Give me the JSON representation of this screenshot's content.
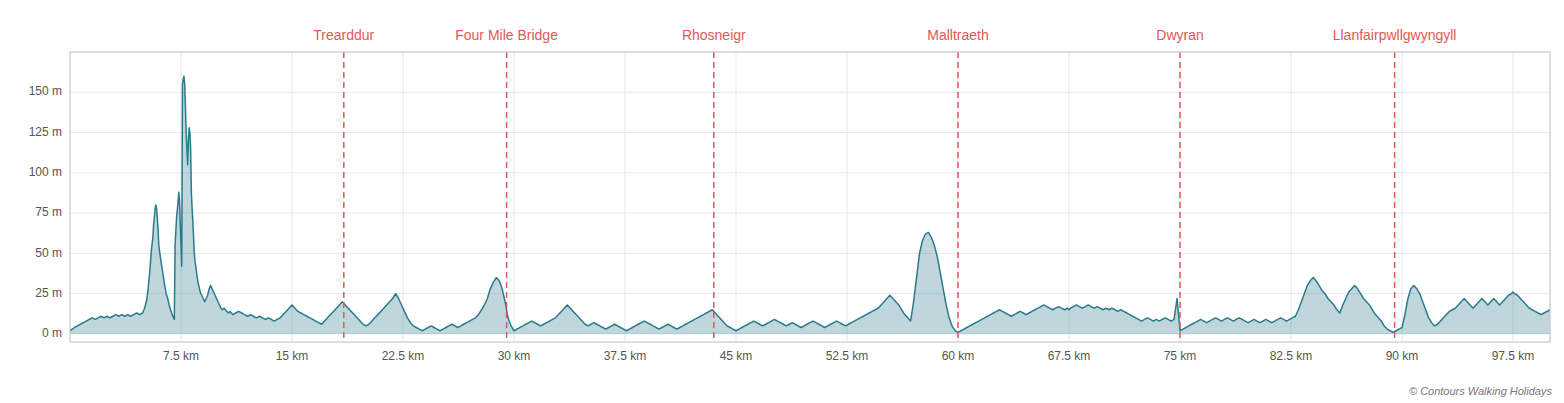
{
  "chart_data": {
    "type": "area",
    "color": "#2a7a8c",
    "grid": true,
    "xlim": [
      0,
      100
    ],
    "ylim": [
      -5,
      175
    ],
    "xticks": [
      {
        "value": 7.5,
        "label": "7.5 km"
      },
      {
        "value": 15,
        "label": "15 km"
      },
      {
        "value": 22.5,
        "label": "22.5 km"
      },
      {
        "value": 30,
        "label": "30 km"
      },
      {
        "value": 37.5,
        "label": "37.5 km"
      },
      {
        "value": 45,
        "label": "45 km"
      },
      {
        "value": 52.5,
        "label": "52.5 km"
      },
      {
        "value": 60,
        "label": "60 km"
      },
      {
        "value": 67.5,
        "label": "67.5 km"
      },
      {
        "value": 75,
        "label": "75 km"
      },
      {
        "value": 82.5,
        "label": "82.5 km"
      },
      {
        "value": 90,
        "label": "90 km"
      },
      {
        "value": 97.5,
        "label": "97.5 km"
      }
    ],
    "yticks": [
      {
        "value": 0,
        "label": "0 m"
      },
      {
        "value": 25,
        "label": "25 m"
      },
      {
        "value": 50,
        "label": "50 m"
      },
      {
        "value": 75,
        "label": "75 m"
      },
      {
        "value": 100,
        "label": "100 m"
      },
      {
        "value": 125,
        "label": "125 m"
      },
      {
        "value": 150,
        "label": "150 m"
      }
    ],
    "annotations": [
      {
        "text": "Trearddur",
        "x": 18.5,
        "color": "#e05858"
      },
      {
        "text": "Four Mile Bridge",
        "x": 29.5,
        "color": "#e05858"
      },
      {
        "text": "Rhosneigr",
        "x": 43.5,
        "color": "#e05858"
      },
      {
        "text": "Malltraeth",
        "x": 60.0,
        "color": "#e05858"
      },
      {
        "text": "Dwyran",
        "x": 75.0,
        "color": "#e05858"
      },
      {
        "text": "Llanfairpwllgwyngyll",
        "x": 89.5,
        "color": "#e05858"
      }
    ],
    "caption": "© Contours Walking Holidays",
    "x": [
      0.0,
      0.15,
      0.3,
      0.5,
      0.7,
      0.9,
      1.1,
      1.3,
      1.5,
      1.7,
      1.9,
      2.1,
      2.3,
      2.5,
      2.7,
      2.9,
      3.1,
      3.3,
      3.5,
      3.7,
      3.9,
      4.1,
      4.3,
      4.5,
      4.7,
      4.9,
      5.0,
      5.1,
      5.2,
      5.3,
      5.4,
      5.5,
      5.6,
      5.65,
      5.7,
      5.75,
      5.8,
      5.85,
      5.9,
      5.95,
      6.0,
      6.1,
      6.2,
      6.3,
      6.4,
      6.5,
      6.6,
      6.7,
      6.8,
      6.9,
      7.0,
      7.05,
      7.1,
      7.2,
      7.3,
      7.35,
      7.4,
      7.45,
      7.5,
      7.55,
      7.6,
      7.65,
      7.7,
      7.75,
      7.8,
      7.85,
      7.9,
      7.95,
      8.0,
      8.05,
      8.1,
      8.15,
      8.2,
      8.25,
      8.3,
      8.35,
      8.4,
      8.45,
      8.5,
      8.55,
      8.6,
      8.65,
      8.7,
      8.75,
      8.8,
      8.9,
      9.0,
      9.1,
      9.2,
      9.3,
      9.4,
      9.5,
      9.6,
      9.7,
      9.8,
      9.9,
      10.0,
      10.1,
      10.2,
      10.3,
      10.4,
      10.5,
      10.6,
      10.7,
      10.8,
      10.9,
      11.0,
      11.2,
      11.4,
      11.6,
      11.8,
      12.0,
      12.2,
      12.4,
      12.6,
      12.8,
      13.0,
      13.2,
      13.4,
      13.6,
      13.8,
      14.0,
      14.2,
      14.4,
      14.6,
      14.8,
      15.0,
      15.2,
      15.4,
      15.6,
      15.8,
      16.0,
      16.2,
      16.4,
      16.6,
      16.8,
      17.0,
      17.2,
      17.4,
      17.6,
      17.8,
      18.0,
      18.2,
      18.4,
      18.6,
      18.8,
      19.0,
      19.2,
      19.4,
      19.6,
      19.8,
      20.0,
      20.2,
      20.4,
      20.6,
      20.8,
      21.0,
      21.2,
      21.4,
      21.6,
      21.8,
      22.0,
      22.2,
      22.4,
      22.6,
      22.8,
      23.0,
      23.2,
      23.4,
      23.6,
      23.8,
      24.0,
      24.2,
      24.4,
      24.6,
      24.8,
      25.0,
      25.2,
      25.4,
      25.6,
      25.8,
      26.0,
      26.2,
      26.4,
      26.6,
      26.8,
      27.0,
      27.2,
      27.4,
      27.6,
      27.8,
      28.0,
      28.2,
      28.4,
      28.6,
      28.8,
      29.0,
      29.2,
      29.4,
      29.6,
      29.8,
      30.0,
      30.2,
      30.4,
      30.6,
      30.8,
      31.0,
      31.2,
      31.4,
      31.6,
      31.8,
      32.0,
      32.2,
      32.4,
      32.6,
      32.8,
      33.0,
      33.2,
      33.4,
      33.6,
      33.8,
      34.0,
      34.2,
      34.4,
      34.6,
      34.8,
      35.0,
      35.2,
      35.4,
      35.6,
      35.8,
      36.0,
      36.2,
      36.4,
      36.6,
      36.8,
      37.0,
      37.2,
      37.4,
      37.6,
      37.8,
      38.0,
      38.2,
      38.4,
      38.6,
      38.8,
      39.0,
      39.2,
      39.4,
      39.6,
      39.8,
      40.0,
      40.2,
      40.4,
      40.6,
      40.8,
      41.0,
      41.2,
      41.4,
      41.6,
      41.8,
      42.0,
      42.2,
      42.4,
      42.6,
      42.8,
      43.0,
      43.2,
      43.4,
      43.6,
      43.8,
      44.0,
      44.2,
      44.4,
      44.6,
      44.8,
      45.0,
      45.2,
      45.4,
      45.6,
      45.8,
      46.0,
      46.2,
      46.4,
      46.6,
      46.8,
      47.0,
      47.2,
      47.4,
      47.6,
      47.8,
      48.0,
      48.2,
      48.4,
      48.6,
      48.8,
      49.0,
      49.2,
      49.4,
      49.6,
      49.8,
      50.0,
      50.2,
      50.4,
      50.6,
      50.8,
      51.0,
      51.2,
      51.4,
      51.6,
      51.8,
      52.0,
      52.2,
      52.4,
      52.6,
      52.8,
      53.0,
      53.2,
      53.4,
      53.6,
      53.8,
      54.0,
      54.2,
      54.4,
      54.6,
      54.8,
      55.0,
      55.2,
      55.4,
      55.6,
      55.8,
      56.0,
      56.2,
      56.4,
      56.6,
      56.8,
      57.0,
      57.2,
      57.4,
      57.6,
      57.8,
      58.0,
      58.2,
      58.4,
      58.6,
      58.8,
      59.0,
      59.2,
      59.4,
      59.6,
      59.8,
      60.0,
      60.2,
      60.4,
      60.6,
      60.8,
      61.0,
      61.2,
      61.4,
      61.6,
      61.8,
      62.0,
      62.2,
      62.4,
      62.6,
      62.8,
      63.0,
      63.2,
      63.4,
      63.6,
      63.8,
      64.0,
      64.2,
      64.4,
      64.6,
      64.8,
      65.0,
      65.2,
      65.4,
      65.6,
      65.8,
      66.0,
      66.2,
      66.4,
      66.6,
      66.8,
      67.0,
      67.2,
      67.4,
      67.5,
      67.6,
      67.8,
      68.0,
      68.2,
      68.4,
      68.6,
      68.8,
      69.0,
      69.2,
      69.4,
      69.6,
      69.8,
      70.0,
      70.2,
      70.4,
      70.6,
      70.8,
      71.0,
      71.2,
      71.4,
      71.6,
      71.8,
      72.0,
      72.2,
      72.4,
      72.6,
      72.8,
      73.0,
      73.2,
      73.4,
      73.6,
      73.8,
      74.0,
      74.2,
      74.4,
      74.6,
      74.8,
      75.0,
      75.2,
      75.4,
      75.6,
      75.8,
      76.0,
      76.2,
      76.4,
      76.6,
      76.8,
      77.0,
      77.2,
      77.4,
      77.6,
      77.8,
      78.0,
      78.2,
      78.4,
      78.6,
      78.8,
      79.0,
      79.2,
      79.4,
      79.6,
      79.8,
      80.0,
      80.2,
      80.4,
      80.6,
      80.8,
      81.0,
      81.2,
      81.4,
      81.6,
      81.8,
      82.0,
      82.2,
      82.4,
      82.6,
      82.8,
      83.0,
      83.2,
      83.4,
      83.6,
      83.8,
      84.0,
      84.2,
      84.4,
      84.6,
      84.8,
      85.0,
      85.2,
      85.4,
      85.6,
      85.8,
      86.0,
      86.2,
      86.4,
      86.6,
      86.8,
      87.0,
      87.2,
      87.4,
      87.6,
      87.8,
      88.0,
      88.2,
      88.4,
      88.6,
      88.8,
      89.0,
      89.2,
      89.4,
      89.6,
      89.8,
      90.0,
      90.2,
      90.4,
      90.6,
      90.8,
      91.0,
      91.2,
      91.4,
      91.6,
      91.8,
      92.0,
      92.2,
      92.4,
      92.6,
      92.8,
      93.0,
      93.2,
      93.4,
      93.6,
      93.8,
      94.0,
      94.2,
      94.4,
      94.6,
      94.8,
      95.0,
      95.2,
      95.4,
      95.6,
      95.8,
      96.0,
      96.2,
      96.4,
      96.6,
      96.8,
      97.0,
      97.2,
      97.4,
      97.5,
      97.6,
      97.8,
      98.0,
      98.2,
      98.4,
      98.6,
      98.8,
      99.0,
      99.2,
      99.4,
      99.6,
      99.8,
      100.0
    ],
    "values": [
      2,
      3,
      4,
      5,
      6,
      7,
      8,
      9,
      10,
      9,
      10,
      11,
      10,
      11,
      10,
      11,
      12,
      11,
      12,
      11,
      12,
      11,
      12,
      13,
      12,
      13,
      15,
      18,
      22,
      30,
      40,
      52,
      60,
      68,
      72,
      78,
      80,
      78,
      72,
      65,
      55,
      48,
      42,
      36,
      30,
      25,
      22,
      18,
      15,
      12,
      10,
      9,
      55,
      72,
      82,
      88,
      82,
      68,
      55,
      42,
      155,
      158,
      160,
      155,
      140,
      125,
      115,
      105,
      120,
      128,
      125,
      115,
      88,
      78,
      70,
      60,
      50,
      45,
      42,
      38,
      35,
      32,
      30,
      28,
      26,
      24,
      22,
      20,
      22,
      24,
      28,
      30,
      28,
      26,
      24,
      22,
      20,
      18,
      16,
      15,
      16,
      15,
      14,
      13,
      14,
      13,
      12,
      13,
      14,
      13,
      12,
      11,
      12,
      11,
      10,
      11,
      10,
      9,
      10,
      9,
      8,
      9,
      10,
      12,
      14,
      16,
      18,
      16,
      14,
      13,
      12,
      11,
      10,
      9,
      8,
      7,
      6,
      8,
      10,
      12,
      14,
      16,
      18,
      20,
      18,
      16,
      14,
      12,
      10,
      8,
      6,
      5,
      6,
      8,
      10,
      12,
      14,
      16,
      18,
      20,
      22,
      25,
      22,
      18,
      14,
      10,
      7,
      5,
      4,
      3,
      2,
      3,
      4,
      5,
      4,
      3,
      2,
      3,
      4,
      5,
      6,
      5,
      4,
      5,
      6,
      7,
      8,
      9,
      10,
      12,
      15,
      18,
      22,
      28,
      32,
      35,
      33,
      28,
      20,
      10,
      5,
      2,
      3,
      4,
      5,
      6,
      7,
      8,
      7,
      6,
      5,
      6,
      7,
      8,
      9,
      10,
      12,
      14,
      16,
      18,
      16,
      14,
      12,
      10,
      8,
      6,
      5,
      6,
      7,
      6,
      5,
      4,
      3,
      4,
      5,
      6,
      5,
      4,
      3,
      2,
      3,
      4,
      5,
      6,
      7,
      8,
      7,
      6,
      5,
      4,
      3,
      4,
      5,
      6,
      5,
      4,
      3,
      4,
      5,
      6,
      7,
      8,
      9,
      10,
      11,
      12,
      13,
      14,
      15,
      13,
      11,
      9,
      7,
      5,
      4,
      3,
      2,
      3,
      4,
      5,
      6,
      7,
      8,
      7,
      6,
      5,
      6,
      7,
      8,
      9,
      8,
      7,
      6,
      5,
      6,
      7,
      6,
      5,
      4,
      5,
      6,
      7,
      8,
      7,
      6,
      5,
      4,
      5,
      6,
      7,
      8,
      7,
      6,
      5,
      6,
      7,
      8,
      9,
      10,
      11,
      12,
      13,
      14,
      15,
      16,
      18,
      20,
      22,
      24,
      22,
      20,
      18,
      15,
      12,
      10,
      8,
      20,
      35,
      50,
      58,
      62,
      63,
      60,
      55,
      48,
      38,
      28,
      18,
      10,
      5,
      2,
      1,
      2,
      3,
      4,
      5,
      6,
      7,
      8,
      9,
      10,
      11,
      12,
      13,
      14,
      15,
      14,
      13,
      12,
      11,
      12,
      13,
      14,
      13,
      12,
      13,
      14,
      15,
      16,
      17,
      18,
      17,
      16,
      15,
      16,
      17,
      16,
      15,
      16,
      15,
      16,
      17,
      18,
      17,
      16,
      17,
      18,
      17,
      16,
      17,
      16,
      15,
      16,
      15,
      16,
      15,
      14,
      15,
      14,
      13,
      12,
      11,
      10,
      9,
      8,
      9,
      10,
      9,
      8,
      9,
      8,
      9,
      10,
      9,
      8,
      9,
      22,
      2,
      3,
      4,
      5,
      6,
      7,
      8,
      9,
      8,
      7,
      8,
      9,
      10,
      9,
      8,
      9,
      10,
      9,
      8,
      9,
      10,
      9,
      8,
      7,
      8,
      9,
      8,
      7,
      8,
      9,
      8,
      7,
      8,
      9,
      10,
      9,
      8,
      9,
      10,
      11,
      15,
      20,
      25,
      30,
      33,
      35,
      33,
      30,
      27,
      25,
      22,
      20,
      18,
      15,
      13,
      18,
      22,
      26,
      28,
      30,
      28,
      25,
      22,
      20,
      18,
      15,
      12,
      10,
      8,
      5,
      3,
      2,
      1,
      2,
      3,
      4,
      12,
      22,
      28,
      30,
      28,
      25,
      20,
      15,
      10,
      7,
      5,
      6,
      8,
      10,
      12,
      14,
      15,
      16,
      18,
      20,
      22,
      20,
      18,
      16,
      18,
      20,
      22,
      20,
      18,
      20,
      22,
      20,
      18,
      20,
      22,
      24,
      25,
      26,
      25,
      24,
      22,
      20,
      18,
      16,
      15,
      14,
      13,
      12,
      13,
      14,
      15
    ]
  }
}
